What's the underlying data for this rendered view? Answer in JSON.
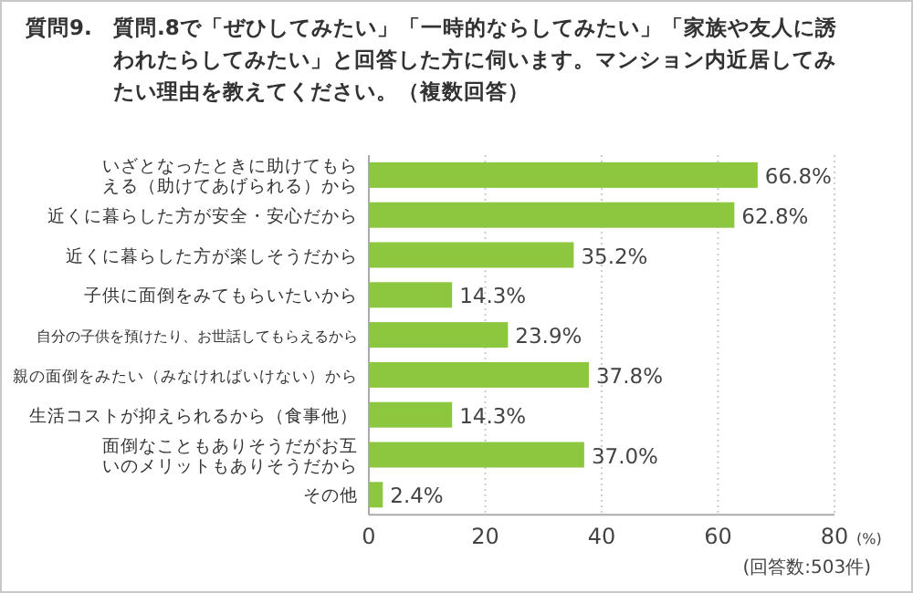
{
  "chart_data": {
    "type": "bar",
    "orientation": "horizontal",
    "title": "質問9.",
    "subtitle": "質問.8で「ぜひしてみたい」「一時的ならしてみたい」「家族や友人に誘われたらしてみたい」と回答した方に伺います。マンション内近居してみたい理由を教えてください。（複数回答）",
    "categories": [
      "いざとなったときに助けてもらえる（助けてあげられる）から",
      "近くに暮らした方が安全・安心だから",
      "近くに暮らした方が楽しそうだから",
      "子供に面倒をみてもらいたいから",
      "自分の子供を預けたり、お世話してもらえるから",
      "親の面倒をみたい（みなければいけない）から",
      "生活コストが抑えられるから（食事他）",
      "面倒なこともありそうだがお互いのメリットもありそうだから",
      "その他"
    ],
    "values": [
      66.8,
      62.8,
      35.2,
      14.3,
      23.9,
      37.8,
      14.3,
      37.0,
      2.4
    ],
    "value_labels": [
      "66.8%",
      "62.8%",
      "35.2%",
      "14.3%",
      "23.9%",
      "37.8%",
      "14.3%",
      "37.0%",
      "2.4%"
    ],
    "color": "#8dc63f",
    "xlim": [
      0,
      80
    ],
    "xticks": [
      0,
      20,
      40,
      60,
      80
    ],
    "grid": "x",
    "xlabel": "(%)",
    "annotations": [
      "(回答数:503件)"
    ]
  }
}
